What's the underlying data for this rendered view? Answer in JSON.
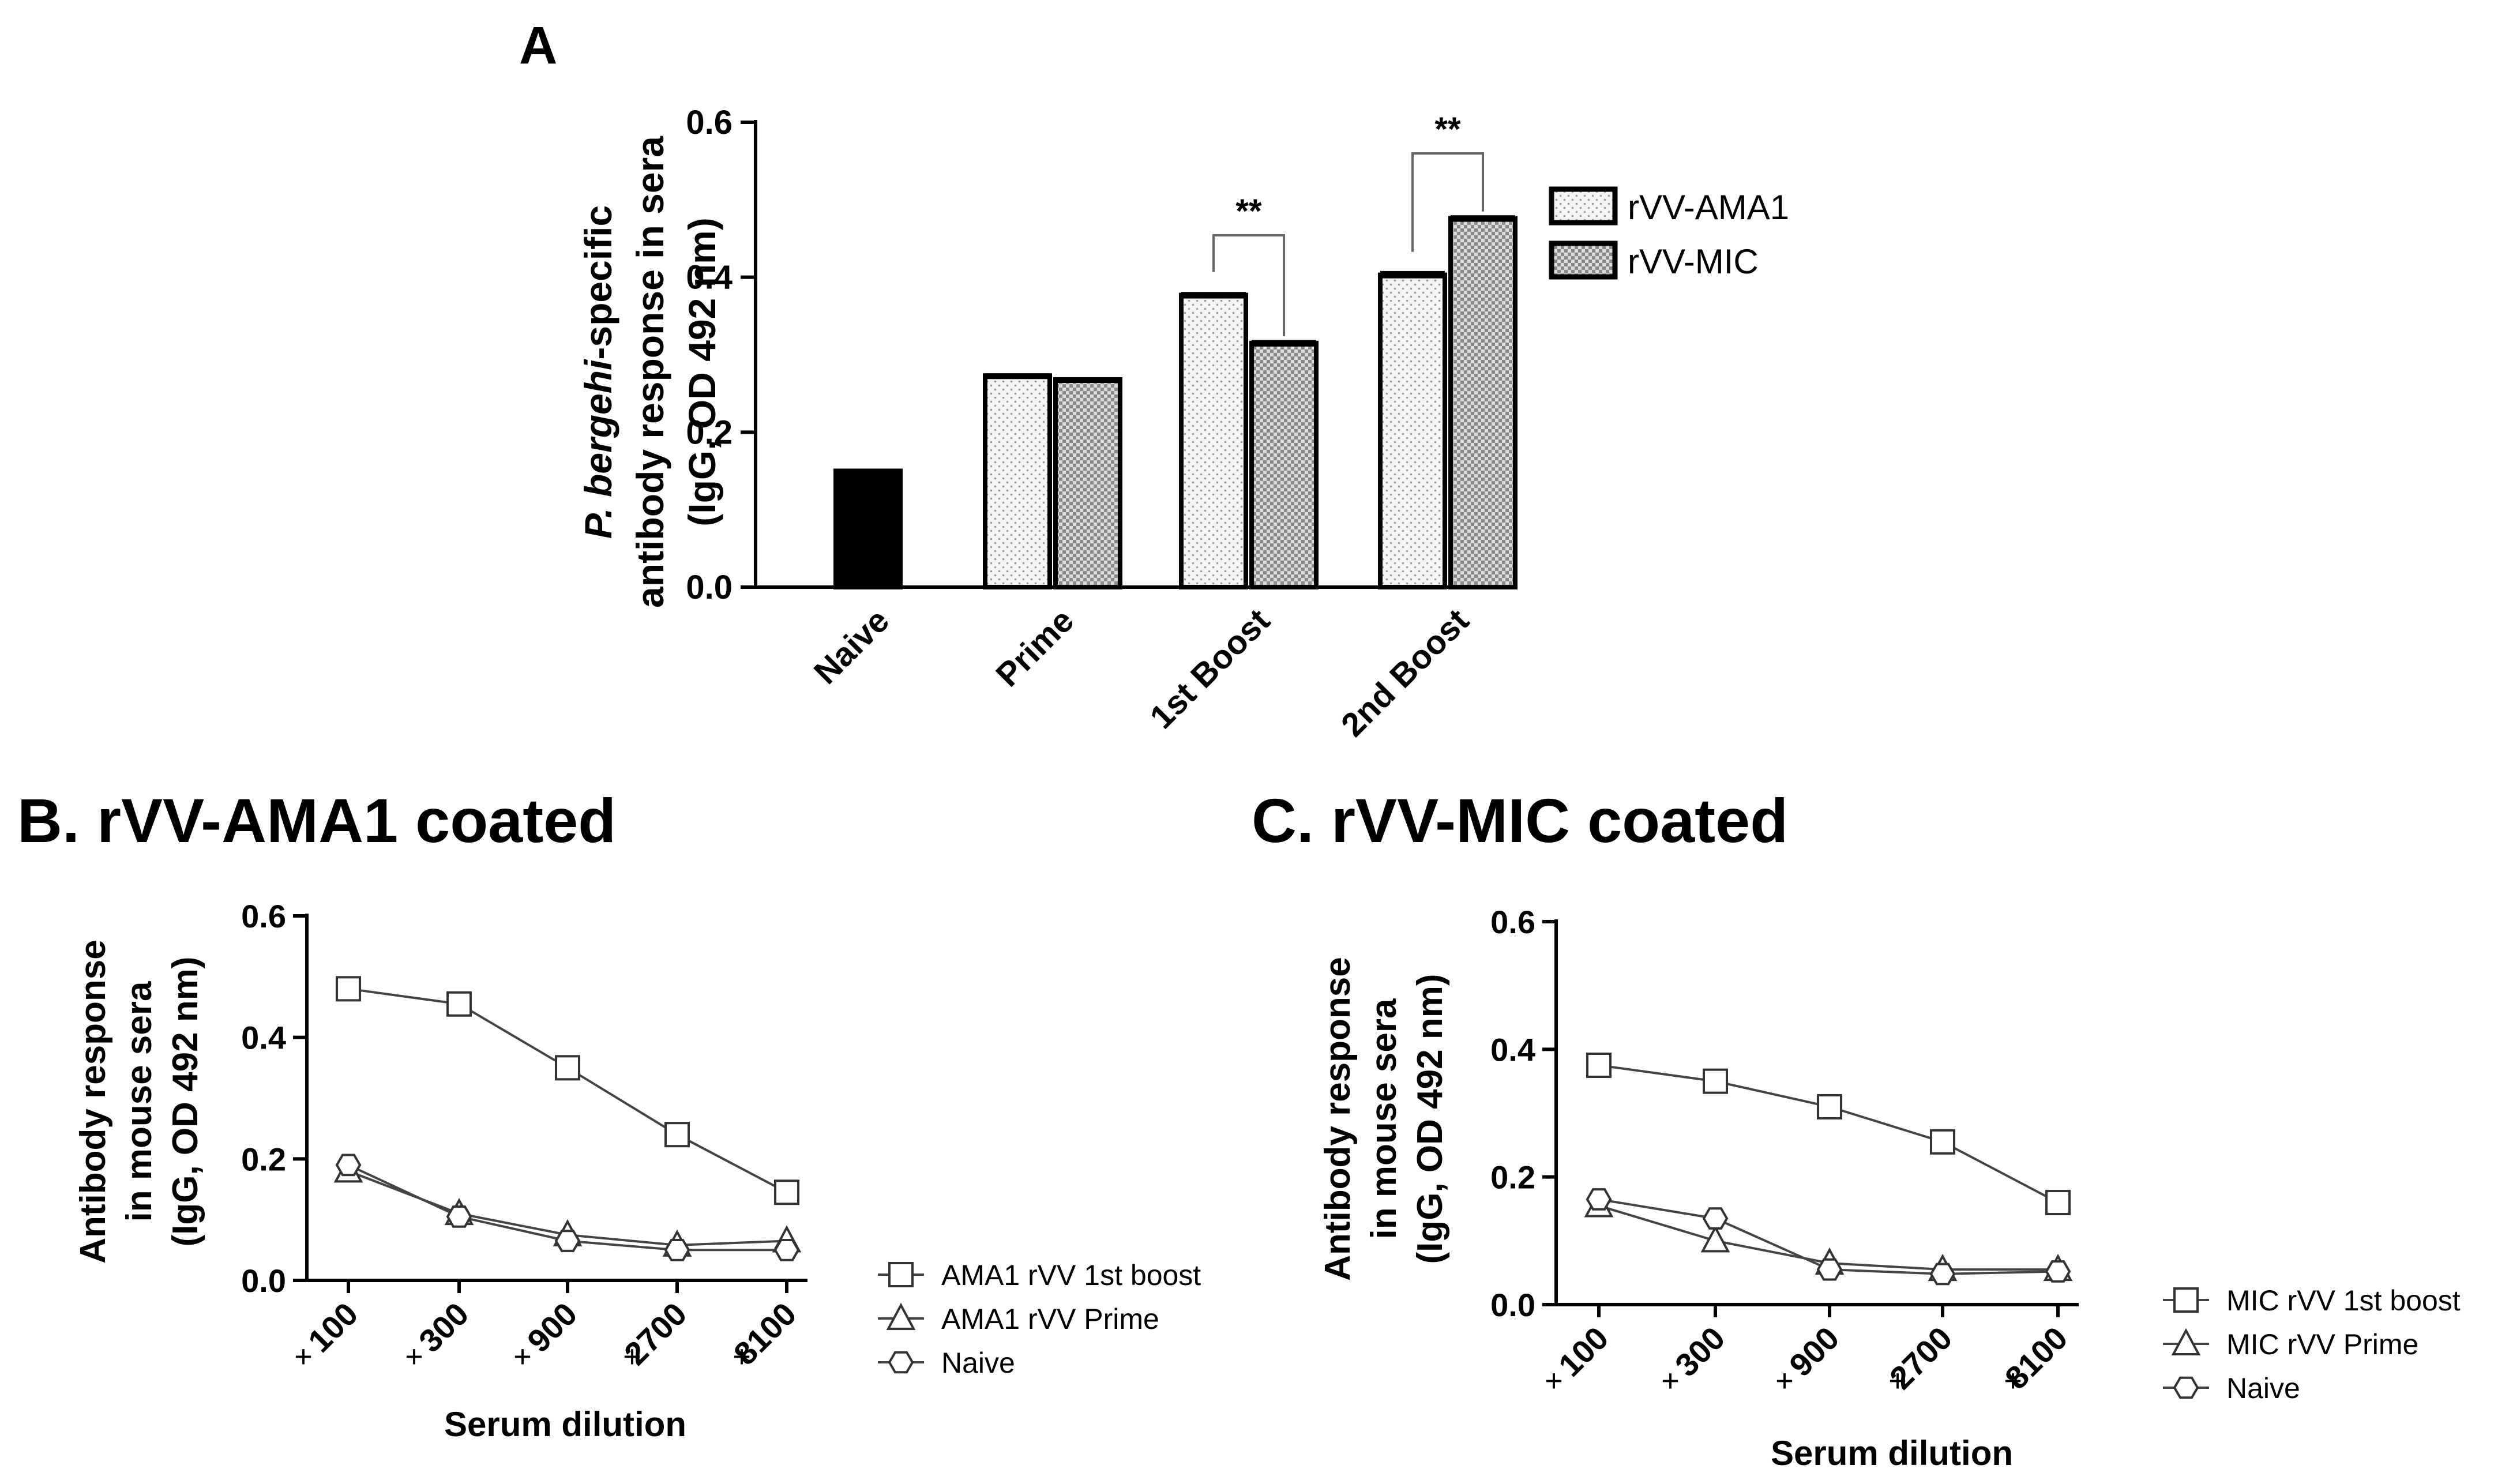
{
  "colors": {
    "ink": "#000000",
    "naive_fill": "#000000",
    "ama1_fill": "#f3f3f3",
    "mic_fill": "#a9a9a9",
    "background": "#ffffff"
  },
  "chart_data": [
    {
      "panel": "A",
      "type": "bar",
      "title": "",
      "panel_label": "A",
      "ylabel_italic": "P. bergehi",
      "ylabel_line1_rest": "-specific",
      "ylabel_line2": "antibody response in sera",
      "ylabel_line3": "(IgG, OD 492 nm)",
      "xlabel": "",
      "ylim": [
        0,
        0.6
      ],
      "yticks": [
        "0.0",
        "0.2",
        "0.4",
        "0.6"
      ],
      "categories": [
        "Naive",
        "Prime",
        "1st Boost",
        "2nd Boost"
      ],
      "series": [
        {
          "name": "Naive",
          "values": [
            0.15,
            null,
            null,
            null
          ]
        },
        {
          "name": "rVV-AMA1",
          "values": [
            null,
            0.273,
            0.377,
            0.403
          ]
        },
        {
          "name": "rVV-MIC",
          "values": [
            null,
            0.268,
            0.315,
            0.476
          ]
        }
      ],
      "errors": {
        "Naive": [
          0.003,
          null,
          null,
          null
        ],
        "rVV-AMA1": [
          null,
          0.003,
          0.004,
          0.005
        ],
        "rVV-MIC": [
          null,
          0.003,
          0.004,
          0.004
        ]
      },
      "legend": [
        "rVV-AMA1",
        "rVV-MIC"
      ],
      "legend_position": "right",
      "annotations": [
        {
          "text": "**",
          "between": "1st Boost"
        },
        {
          "text": "**",
          "between": "2nd Boost"
        }
      ]
    },
    {
      "panel": "B",
      "type": "line",
      "title": "B. rVV-AMA1 coated",
      "xlabel": "Serum dilution",
      "ylabel_line1": "Antibody response",
      "ylabel_line2": "in mouse sera",
      "ylabel_line3": "(IgG, OD 492 nm)",
      "ylim": [
        0,
        0.6
      ],
      "yticks": [
        "0.0",
        "0.2",
        "0.4",
        "0.6"
      ],
      "x": [
        "100",
        "300",
        "900",
        "2700",
        "8100"
      ],
      "x_prefix": "+",
      "series": [
        {
          "name": "AMA1 rVV 1st boost",
          "marker": "square",
          "values": [
            0.48,
            0.455,
            0.35,
            0.24,
            0.145
          ]
        },
        {
          "name": "AMA1 rVV Prime",
          "marker": "triangle",
          "values": [
            0.18,
            0.11,
            0.075,
            0.058,
            0.065
          ]
        },
        {
          "name": "Naive",
          "marker": "hexagon",
          "values": [
            0.19,
            0.105,
            0.065,
            0.05,
            0.05
          ]
        }
      ],
      "legend_position": "bottom-right"
    },
    {
      "panel": "C",
      "type": "line",
      "title": "C. rVV-MIC coated",
      "xlabel": "Serum dilution",
      "ylabel_line1": "Antibody response",
      "ylabel_line2": "in mouse sera",
      "ylabel_line3": "(IgG, OD 492 nm)",
      "ylim": [
        0,
        0.6
      ],
      "yticks": [
        "0.0",
        "0.2",
        "0.4",
        "0.6"
      ],
      "x": [
        "100",
        "300",
        "900",
        "2700",
        "8100"
      ],
      "x_prefix": "+",
      "series": [
        {
          "name": "MIC rVV 1st boost",
          "marker": "square",
          "values": [
            0.375,
            0.35,
            0.31,
            0.255,
            0.16
          ]
        },
        {
          "name": "MIC rVV Prime",
          "marker": "triangle",
          "values": [
            0.155,
            0.1,
            0.065,
            0.055,
            0.055
          ]
        },
        {
          "name": "Naive",
          "marker": "hexagon",
          "values": [
            0.165,
            0.135,
            0.055,
            0.048,
            0.052
          ]
        }
      ],
      "legend_position": "bottom-right"
    }
  ]
}
